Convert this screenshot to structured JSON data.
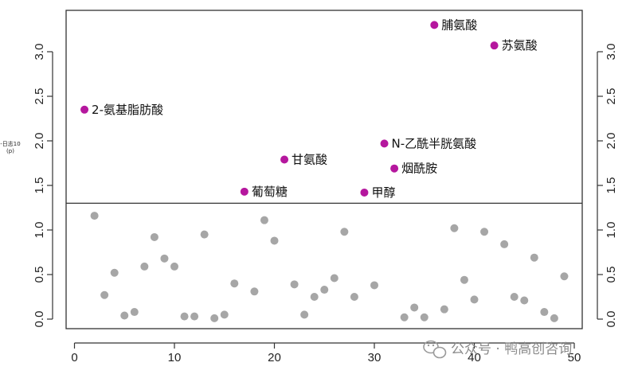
{
  "chart_data": {
    "type": "scatter",
    "title": "",
    "xlabel": "",
    "ylabel_lines": [
      "-日志10",
      "(p)"
    ],
    "xlim": [
      0,
      50
    ],
    "ylim": [
      -0.1,
      3.4
    ],
    "x_ticks": [
      0,
      10,
      20,
      30,
      40,
      50
    ],
    "y_ticks": [
      0.0,
      0.5,
      1.0,
      1.5,
      2.0,
      2.5,
      3.0
    ],
    "y_tick_labels": [
      "0.0",
      "0.5",
      "1.0",
      "1.5",
      "2.0",
      "2.5",
      "3.0"
    ],
    "threshold_y": 1.3,
    "grid": false,
    "colors": {
      "significant": "#b5179e",
      "non_significant": "#a6a6a6",
      "axis": "#333333",
      "threshold": "#333333"
    },
    "significant": [
      {
        "x": 1,
        "y": 2.35,
        "label": "2-氨基脂肪酸",
        "label_side": "right"
      },
      {
        "x": 17,
        "y": 1.43,
        "label": "葡萄糖",
        "label_side": "right"
      },
      {
        "x": 21,
        "y": 1.79,
        "label": "甘氨酸",
        "label_side": "right"
      },
      {
        "x": 29,
        "y": 1.42,
        "label": "甲醇",
        "label_side": "right"
      },
      {
        "x": 31,
        "y": 1.97,
        "label": "N-乙酰半胱氨酸",
        "label_side": "right"
      },
      {
        "x": 32,
        "y": 1.69,
        "label": "烟酰胺",
        "label_side": "right"
      },
      {
        "x": 36,
        "y": 3.3,
        "label": "脯氨酸",
        "label_side": "right"
      },
      {
        "x": 42,
        "y": 3.07,
        "label": "苏氨酸",
        "label_side": "right"
      }
    ],
    "non_significant": [
      {
        "x": 2,
        "y": 1.16
      },
      {
        "x": 3,
        "y": 0.27
      },
      {
        "x": 4,
        "y": 0.52
      },
      {
        "x": 5,
        "y": 0.04
      },
      {
        "x": 6,
        "y": 0.08
      },
      {
        "x": 7,
        "y": 0.59
      },
      {
        "x": 8,
        "y": 0.92
      },
      {
        "x": 9,
        "y": 0.68
      },
      {
        "x": 10,
        "y": 0.59
      },
      {
        "x": 11,
        "y": 0.03
      },
      {
        "x": 12,
        "y": 0.03
      },
      {
        "x": 13,
        "y": 0.95
      },
      {
        "x": 14,
        "y": 0.01
      },
      {
        "x": 15,
        "y": 0.05
      },
      {
        "x": 16,
        "y": 0.4
      },
      {
        "x": 18,
        "y": 0.31
      },
      {
        "x": 19,
        "y": 1.11
      },
      {
        "x": 20,
        "y": 0.88
      },
      {
        "x": 22,
        "y": 0.39
      },
      {
        "x": 23,
        "y": 0.05
      },
      {
        "x": 24,
        "y": 0.25
      },
      {
        "x": 25,
        "y": 0.33
      },
      {
        "x": 26,
        "y": 0.46
      },
      {
        "x": 27,
        "y": 0.98
      },
      {
        "x": 28,
        "y": 0.25
      },
      {
        "x": 30,
        "y": 0.38
      },
      {
        "x": 33,
        "y": 0.02
      },
      {
        "x": 34,
        "y": 0.13
      },
      {
        "x": 35,
        "y": 0.02
      },
      {
        "x": 37,
        "y": 0.11
      },
      {
        "x": 38,
        "y": 1.02
      },
      {
        "x": 39,
        "y": 0.44
      },
      {
        "x": 40,
        "y": 0.22
      },
      {
        "x": 41,
        "y": 0.98
      },
      {
        "x": 43,
        "y": 0.84
      },
      {
        "x": 44,
        "y": 0.25
      },
      {
        "x": 45,
        "y": 0.21
      },
      {
        "x": 46,
        "y": 0.69
      },
      {
        "x": 47,
        "y": 0.08
      },
      {
        "x": 48,
        "y": 0.01
      },
      {
        "x": 49,
        "y": 0.48
      }
    ]
  },
  "watermark": {
    "icon": "wechat-icon",
    "text": "公众号 · 鸭高创咨询"
  }
}
